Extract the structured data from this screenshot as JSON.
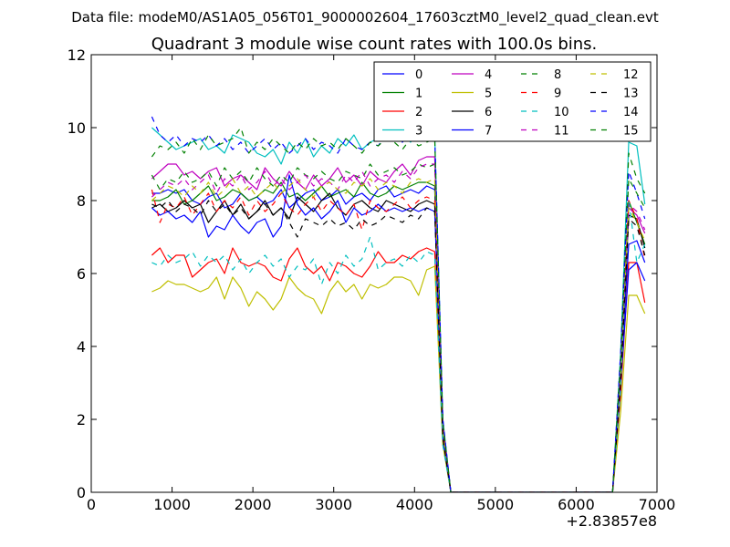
{
  "figure": {
    "suptitle": "Data file: modeM0/AS1A05_056T01_9000002604_17603cztM0_level2_quad_clean.evt"
  },
  "chart_data": {
    "type": "line",
    "title": "Quadrant 3 module wise count rates with 100.0s bins.",
    "xlabel": "",
    "ylabel": "",
    "xlim": [
      0,
      7000
    ],
    "ylim": [
      0,
      12
    ],
    "x_offset_label": "+2.83857e8",
    "xticks": [
      0,
      1000,
      2000,
      3000,
      4000,
      5000,
      6000,
      7000
    ],
    "yticks": [
      0,
      2,
      4,
      6,
      8,
      10,
      12
    ],
    "grid": false,
    "legend": {
      "placement": "top-right",
      "columns": 4
    },
    "x": [
      750,
      850,
      950,
      1050,
      1150,
      1250,
      1350,
      1450,
      1550,
      1650,
      1750,
      1850,
      1950,
      2050,
      2150,
      2250,
      2350,
      2450,
      2550,
      2650,
      2750,
      2850,
      2950,
      3050,
      3150,
      3250,
      3350,
      3450,
      3550,
      3650,
      3750,
      3850,
      3950,
      4050,
      4150,
      4250,
      4350,
      4450,
      4550,
      4650,
      4750,
      4850,
      4950,
      5050,
      5150,
      5250,
      5350,
      5450,
      5550,
      5650,
      5750,
      5850,
      5950,
      6050,
      6150,
      6250,
      6350,
      6450,
      6550,
      6650,
      6750,
      6850
    ],
    "series": [
      {
        "name": "0",
        "color": "#0000ff",
        "dash": "solid",
        "values": [
          8.2,
          8.2,
          8.3,
          8.2,
          8.3,
          8.0,
          7.9,
          8.1,
          8.2,
          7.8,
          7.9,
          8.2,
          8.0,
          8.1,
          7.9,
          8.0,
          8.3,
          7.8,
          8.0,
          8.2,
          8.3,
          8.0,
          8.1,
          8.3,
          7.9,
          8.1,
          8.2,
          8.0,
          8.3,
          8.4,
          8.1,
          8.2,
          8.3,
          8.2,
          8.4,
          8.3,
          1.6,
          0,
          0,
          0,
          0,
          0,
          0,
          0,
          0,
          0,
          0,
          0,
          0,
          0,
          0,
          0,
          0,
          0,
          0,
          0,
          0,
          0,
          3.2,
          6.8,
          6.9,
          6.3
        ]
      },
      {
        "name": "1",
        "color": "#008000",
        "dash": "solid",
        "values": [
          8.0,
          8.0,
          8.1,
          8.3,
          7.9,
          8.0,
          8.2,
          8.4,
          8.0,
          8.1,
          8.3,
          8.2,
          8.0,
          8.1,
          8.3,
          8.2,
          8.5,
          8.1,
          8.2,
          8.0,
          8.2,
          8.4,
          8.1,
          8.2,
          8.3,
          8.1,
          8.5,
          8.2,
          8.1,
          8.2,
          8.4,
          8.3,
          8.4,
          8.5,
          8.5,
          8.4,
          1.7,
          0,
          0,
          0,
          0,
          0,
          0,
          0,
          0,
          0,
          0,
          0,
          0,
          0,
          0,
          0,
          0,
          0,
          0,
          0,
          0,
          0,
          3.3,
          8.0,
          7.4,
          6.8
        ]
      },
      {
        "name": "2",
        "color": "#ff0000",
        "dash": "solid",
        "values": [
          6.5,
          6.7,
          6.3,
          6.5,
          6.5,
          5.9,
          6.1,
          6.3,
          6.4,
          6.0,
          6.7,
          6.3,
          6.2,
          6.3,
          6.2,
          5.9,
          5.8,
          6.4,
          6.7,
          6.2,
          6.0,
          6.2,
          5.8,
          6.3,
          6.2,
          6.0,
          5.9,
          6.2,
          6.6,
          6.3,
          6.3,
          6.5,
          6.4,
          6.6,
          6.7,
          6.6,
          1.4,
          0,
          0,
          0,
          0,
          0,
          0,
          0,
          0,
          0,
          0,
          0,
          0,
          0,
          0,
          0,
          0,
          0,
          0,
          0,
          0,
          0,
          2.7,
          6.3,
          6.3,
          5.2
        ]
      },
      {
        "name": "3",
        "color": "#00bfbf",
        "dash": "solid",
        "values": [
          10.0,
          9.8,
          9.6,
          9.4,
          9.5,
          9.6,
          9.7,
          9.4,
          9.5,
          9.3,
          9.8,
          9.7,
          9.6,
          9.3,
          9.2,
          9.4,
          9.0,
          9.6,
          9.3,
          9.7,
          9.2,
          9.5,
          9.3,
          9.7,
          9.5,
          9.8,
          9.4,
          9.6,
          9.7,
          9.8,
          10.1,
          9.9,
          9.6,
          9.9,
          9.8,
          9.8,
          2.0,
          0,
          0,
          0,
          0,
          0,
          0,
          0,
          0,
          0,
          0,
          0,
          0,
          0,
          0,
          0,
          0,
          0,
          0,
          0,
          0,
          0,
          3.8,
          9.6,
          9.5,
          7.9
        ]
      },
      {
        "name": "4",
        "color": "#bf00bf",
        "dash": "solid",
        "values": [
          8.6,
          8.8,
          9.0,
          9.0,
          8.7,
          8.8,
          8.6,
          8.8,
          8.9,
          8.4,
          8.6,
          8.7,
          8.5,
          8.3,
          8.9,
          8.6,
          8.4,
          8.8,
          8.5,
          8.3,
          8.7,
          8.4,
          8.6,
          8.9,
          8.5,
          8.7,
          8.4,
          8.8,
          8.6,
          8.5,
          8.8,
          9.0,
          8.7,
          9.1,
          9.2,
          9.2,
          1.9,
          0,
          0,
          0,
          0,
          0,
          0,
          0,
          0,
          0,
          0,
          0,
          0,
          0,
          0,
          0,
          0,
          0,
          0,
          0,
          0,
          0,
          3.4,
          7.8,
          7.6,
          7.1
        ]
      },
      {
        "name": "5",
        "color": "#bfbf00",
        "dash": "solid",
        "values": [
          5.5,
          5.6,
          5.8,
          5.7,
          5.7,
          5.6,
          5.5,
          5.6,
          5.9,
          5.3,
          5.9,
          5.6,
          5.1,
          5.5,
          5.3,
          5.0,
          5.3,
          5.9,
          5.6,
          5.4,
          5.3,
          4.9,
          5.5,
          5.8,
          5.5,
          5.7,
          5.3,
          5.7,
          5.6,
          5.7,
          5.9,
          5.9,
          5.8,
          5.4,
          6.1,
          6.2,
          1.3,
          0,
          0,
          0,
          0,
          0,
          0,
          0,
          0,
          0,
          0,
          0,
          0,
          0,
          0,
          0,
          0,
          0,
          0,
          0,
          0,
          0,
          2.2,
          5.4,
          5.4,
          4.9
        ]
      },
      {
        "name": "6",
        "color": "#000000",
        "dash": "solid",
        "values": [
          7.8,
          7.9,
          7.7,
          7.8,
          8.0,
          7.8,
          7.9,
          7.4,
          7.7,
          8.0,
          7.6,
          7.9,
          7.5,
          7.7,
          8.0,
          7.6,
          7.8,
          7.5,
          8.1,
          7.9,
          7.7,
          8.0,
          8.2,
          7.8,
          7.6,
          7.9,
          8.0,
          7.8,
          7.7,
          8.0,
          7.9,
          7.8,
          7.7,
          7.9,
          8.0,
          7.9,
          1.6,
          0,
          0,
          0,
          0,
          0,
          0,
          0,
          0,
          0,
          0,
          0,
          0,
          0,
          0,
          0,
          0,
          0,
          0,
          0,
          0,
          0,
          3.1,
          7.6,
          7.5,
          6.7
        ]
      },
      {
        "name": "7",
        "color": "#0000ff",
        "dash": "solid",
        "values": [
          7.8,
          7.6,
          7.7,
          7.5,
          7.6,
          7.4,
          7.7,
          7.0,
          7.3,
          7.2,
          7.6,
          7.3,
          7.1,
          7.4,
          7.5,
          7.0,
          7.3,
          8.7,
          7.9,
          7.6,
          7.8,
          7.5,
          7.7,
          8.0,
          7.4,
          7.8,
          7.6,
          7.7,
          7.9,
          7.7,
          7.8,
          7.7,
          7.8,
          7.7,
          7.8,
          7.7,
          1.5,
          0,
          0,
          0,
          0,
          0,
          0,
          0,
          0,
          0,
          0,
          0,
          0,
          0,
          0,
          0,
          0,
          0,
          0,
          0,
          0,
          0,
          3.0,
          6.1,
          6.3,
          5.8
        ]
      },
      {
        "name": "8",
        "color": "#008000",
        "dash": "dashed",
        "values": [
          8.7,
          8.3,
          8.6,
          8.5,
          8.8,
          8.5,
          8.6,
          8.8,
          8.4,
          8.9,
          8.6,
          8.8,
          8.5,
          8.9,
          8.6,
          8.4,
          8.7,
          8.5,
          8.9,
          8.7,
          8.6,
          8.8,
          8.6,
          8.5,
          8.8,
          8.7,
          8.6,
          9.0,
          8.7,
          8.8,
          8.9,
          8.7,
          8.8,
          9.0,
          8.9,
          9.0,
          1.8,
          0,
          0,
          0,
          0,
          0,
          0,
          0,
          0,
          0,
          0,
          0,
          0,
          0,
          0,
          0,
          0,
          0,
          0,
          0,
          0,
          0,
          3.5,
          9.3,
          8.6,
          8.2
        ]
      },
      {
        "name": "9",
        "color": "#ff0000",
        "dash": "dashed",
        "values": [
          8.3,
          7.4,
          7.9,
          7.8,
          8.1,
          7.6,
          7.9,
          8.2,
          7.7,
          8.0,
          7.8,
          8.1,
          7.6,
          8.0,
          7.7,
          7.9,
          8.2,
          7.8,
          7.6,
          7.9,
          8.1,
          7.7,
          8.0,
          7.8,
          7.6,
          7.9,
          7.2,
          8.0,
          7.8,
          7.7,
          7.9,
          8.1,
          7.8,
          8.0,
          8.1,
          8.0,
          1.6,
          0,
          0,
          0,
          0,
          0,
          0,
          0,
          0,
          0,
          0,
          0,
          0,
          0,
          0,
          0,
          0,
          0,
          0,
          0,
          0,
          0,
          3.0,
          8.0,
          7.5,
          6.4
        ]
      },
      {
        "name": "10",
        "color": "#00bfbf",
        "dash": "dashed",
        "values": [
          6.3,
          6.2,
          6.5,
          6.3,
          6.4,
          6.6,
          6.2,
          6.5,
          6.3,
          6.5,
          6.1,
          6.4,
          6.0,
          6.3,
          6.5,
          6.2,
          6.4,
          5.9,
          6.2,
          6.1,
          6.4,
          5.7,
          6.3,
          6.0,
          6.5,
          6.2,
          6.4,
          7.0,
          6.1,
          6.3,
          6.4,
          6.2,
          6.5,
          6.3,
          6.6,
          6.5,
          1.3,
          0,
          0,
          0,
          0,
          0,
          0,
          0,
          0,
          0,
          0,
          0,
          0,
          0,
          0,
          0,
          0,
          0,
          0,
          0,
          0,
          0,
          2.8,
          8.0,
          6.3,
          6.8
        ]
      },
      {
        "name": "11",
        "color": "#bf00bf",
        "dash": "dashed",
        "values": [
          8.1,
          8.3,
          8.5,
          8.4,
          8.6,
          8.3,
          8.5,
          8.7,
          8.2,
          8.6,
          8.4,
          8.7,
          8.3,
          8.5,
          8.8,
          8.4,
          8.6,
          8.3,
          8.5,
          8.7,
          8.4,
          8.6,
          8.5,
          8.3,
          8.7,
          8.5,
          8.8,
          8.4,
          8.6,
          8.7,
          8.5,
          8.8,
          8.6,
          8.9,
          9.0,
          9.0,
          1.8,
          0,
          0,
          0,
          0,
          0,
          0,
          0,
          0,
          0,
          0,
          0,
          0,
          0,
          0,
          0,
          0,
          0,
          0,
          0,
          0,
          0,
          3.4,
          7.9,
          7.7,
          7.2
        ]
      },
      {
        "name": "12",
        "color": "#bfbf00",
        "dash": "dashed",
        "values": [
          8.0,
          8.2,
          8.4,
          8.3,
          8.1,
          8.4,
          8.2,
          8.5,
          8.1,
          8.3,
          8.6,
          8.2,
          8.4,
          8.1,
          8.3,
          8.5,
          8.2,
          8.4,
          8.6,
          8.3,
          8.1,
          8.4,
          8.5,
          8.3,
          8.2,
          8.5,
          8.4,
          8.6,
          8.3,
          8.5,
          8.4,
          8.2,
          8.5,
          8.6,
          8.5,
          8.6,
          1.7,
          0,
          0,
          0,
          0,
          0,
          0,
          0,
          0,
          0,
          0,
          0,
          0,
          0,
          0,
          0,
          0,
          0,
          0,
          0,
          0,
          0,
          3.3,
          7.8,
          7.4,
          6.9
        ]
      },
      {
        "name": "13",
        "color": "#000000",
        "dash": "dashed",
        "values": [
          7.9,
          7.8,
          8.0,
          7.7,
          7.9,
          7.8,
          7.6,
          8.0,
          7.7,
          7.9,
          7.6,
          7.8,
          7.5,
          7.7,
          7.9,
          7.6,
          7.8,
          7.4,
          7.0,
          7.5,
          7.4,
          7.3,
          7.5,
          7.3,
          7.4,
          7.2,
          7.5,
          7.3,
          7.4,
          7.6,
          7.5,
          7.4,
          7.6,
          7.5,
          7.8,
          7.7,
          1.5,
          0,
          0,
          0,
          0,
          0,
          0,
          0,
          0,
          0,
          0,
          0,
          0,
          0,
          0,
          0,
          0,
          0,
          0,
          0,
          0,
          0,
          3.0,
          7.5,
          7.3,
          6.5
        ]
      },
      {
        "name": "14",
        "color": "#0000ff",
        "dash": "dashed",
        "values": [
          10.3,
          9.8,
          9.6,
          9.8,
          9.5,
          9.7,
          9.6,
          9.8,
          9.5,
          9.7,
          9.4,
          9.6,
          9.3,
          9.5,
          9.7,
          9.4,
          9.6,
          9.3,
          9.5,
          9.7,
          9.4,
          9.6,
          9.5,
          9.3,
          9.7,
          9.5,
          9.4,
          9.6,
          9.5,
          9.8,
          9.7,
          9.6,
          9.9,
          9.7,
          9.8,
          9.8,
          2.0,
          0,
          0,
          0,
          0,
          0,
          0,
          0,
          0,
          0,
          0,
          0,
          0,
          0,
          0,
          0,
          0,
          0,
          0,
          0,
          0,
          0,
          3.8,
          8.8,
          8.2,
          7.5
        ]
      },
      {
        "name": "15",
        "color": "#008000",
        "dash": "dashed",
        "values": [
          9.2,
          9.5,
          9.4,
          9.6,
          9.3,
          9.7,
          9.4,
          9.8,
          9.5,
          9.6,
          9.7,
          10.0,
          9.3,
          9.6,
          9.4,
          9.7,
          9.5,
          9.3,
          9.6,
          9.4,
          9.7,
          9.5,
          9.6,
          9.4,
          9.7,
          9.5,
          9.3,
          9.6,
          9.5,
          9.7,
          9.6,
          9.4,
          9.7,
          9.5,
          9.6,
          9.7,
          1.9,
          0,
          0,
          0,
          0,
          0,
          0,
          0,
          0,
          0,
          0,
          0,
          0,
          0,
          0,
          0,
          0,
          0,
          0,
          0,
          0,
          0,
          3.6,
          8.6,
          8.2,
          7.8
        ]
      }
    ]
  }
}
